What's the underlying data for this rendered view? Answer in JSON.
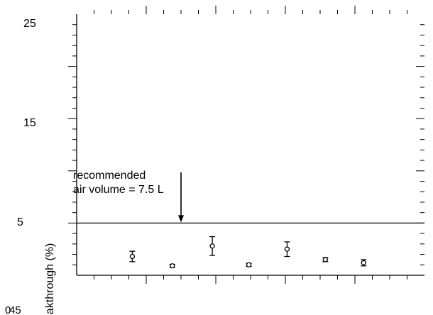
{
  "chart_data": {
    "type": "scatter",
    "title": "",
    "xlabel": "",
    "ylabel": "eakthrough (%)",
    "xlim": [
      0,
      20
    ],
    "ylim": [
      0,
      25
    ],
    "y_ticks_labeled": [
      "25",
      "15",
      "5"
    ],
    "x_ticks_labeled": [
      "0",
      "45"
    ],
    "x_minor_ticks": [
      1,
      2,
      3,
      4,
      5,
      6,
      7,
      8,
      9,
      10,
      11,
      12,
      13,
      14,
      15,
      16,
      17,
      18,
      19
    ],
    "x_major_ticks": [
      4,
      8,
      12,
      16
    ],
    "y_minor_ticks": [
      1,
      2,
      3,
      4,
      6,
      7,
      8,
      9,
      11,
      12,
      13,
      14,
      16,
      17,
      18,
      19,
      21,
      22,
      23,
      24
    ],
    "y_major_ticks": [
      5,
      10,
      15,
      20
    ],
    "reference_line": {
      "y": 5
    },
    "annotation": {
      "lines": [
        "recommended",
        "air volume = 7.5 L"
      ],
      "arrow_x": 6
    },
    "grid": false,
    "series": [
      {
        "x": [
          3.2,
          5.5,
          7.8,
          9.9,
          12.1,
          14.3,
          16.5
        ],
        "y": [
          1.8,
          0.9,
          2.8,
          1.0,
          2.5,
          1.5,
          1.2
        ],
        "yerr": [
          0.5,
          0.15,
          0.9,
          0.15,
          0.7,
          0.2,
          0.3
        ]
      }
    ]
  }
}
